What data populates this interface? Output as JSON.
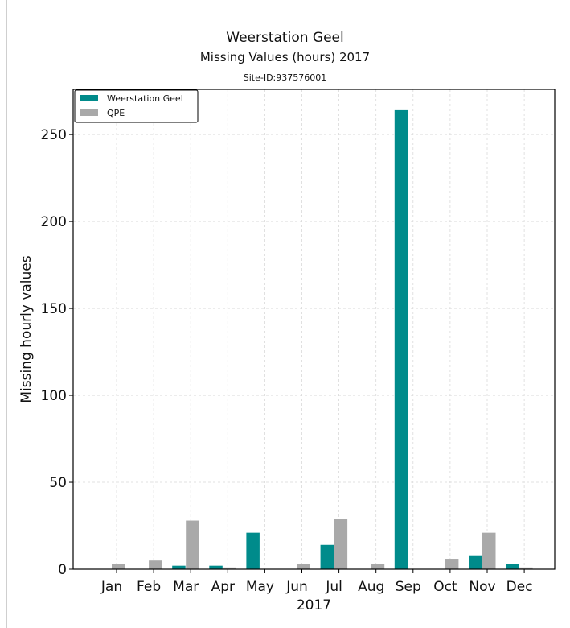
{
  "chart_data": {
    "type": "bar",
    "title": "Weerstation Geel",
    "subtitle": "Missing Values (hours) 2017",
    "site_id": "Site-ID:937576001",
    "xlabel": "2017",
    "ylabel": "Missing hourly values",
    "categories": [
      "Jan",
      "Feb",
      "Mar",
      "Apr",
      "May",
      "Jun",
      "Jul",
      "Aug",
      "Sep",
      "Oct",
      "Nov",
      "Dec"
    ],
    "series": [
      {
        "name": "Weerstation Geel",
        "color": "#008b8b",
        "values": [
          0,
          0,
          2,
          2,
          21,
          0,
          14,
          0,
          264,
          0,
          8,
          3
        ]
      },
      {
        "name": "QPE",
        "color": "#a9a9a9",
        "values": [
          3,
          5,
          28,
          1,
          0,
          3,
          29,
          3,
          0,
          6,
          21,
          1
        ]
      }
    ],
    "ylim": [
      0,
      276
    ],
    "yticks": [
      0,
      50,
      100,
      150,
      200,
      250
    ],
    "grid": true,
    "legend_position": "top-left"
  }
}
